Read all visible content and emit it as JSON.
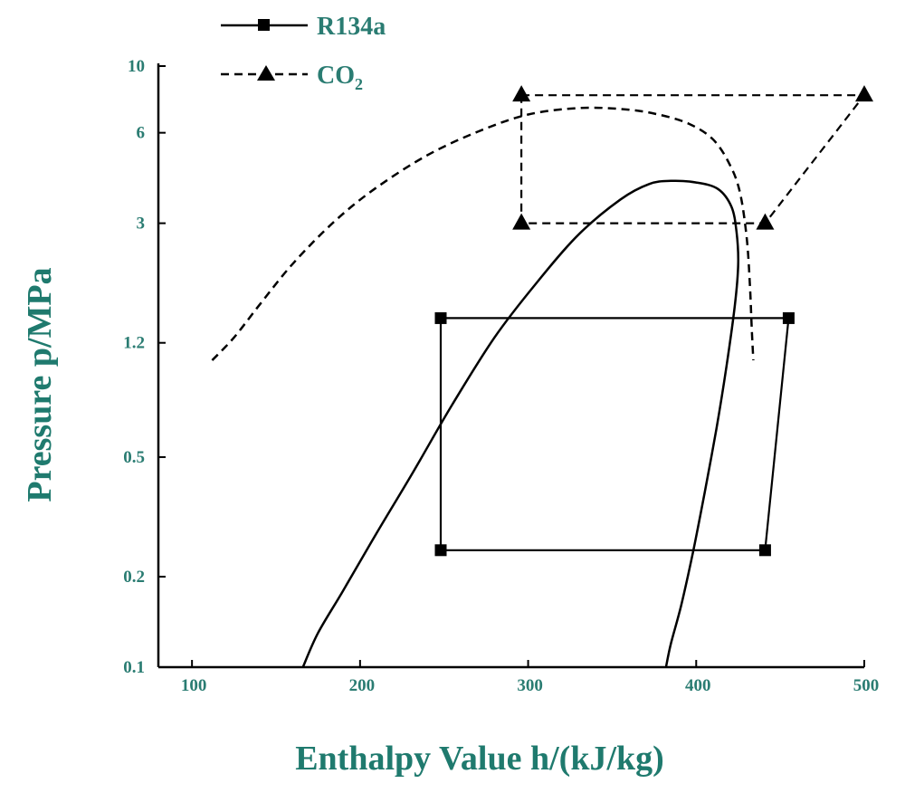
{
  "chart_data": {
    "type": "line",
    "xlabel": "Enthalpy Value h/(kJ/kg)",
    "ylabel": "Pressure p/MPa",
    "xlim": [
      80,
      500
    ],
    "ylim": [
      0.1,
      10
    ],
    "yscale": "log",
    "x_ticks": [
      100,
      200,
      300,
      400,
      500
    ],
    "x_tick_labels": [
      "100",
      "200",
      "300",
      "400",
      "500"
    ],
    "y_ticks": [
      0.1,
      0.2,
      0.5,
      1.2,
      3,
      6,
      10
    ],
    "y_tick_labels": [
      "0.1",
      "0.2",
      "0.5",
      "1.2",
      "3",
      "6",
      "10"
    ],
    "grid": false,
    "legend": {
      "position": "top-left",
      "entries": [
        {
          "label": "R134a",
          "line": "solid",
          "marker": "square"
        },
        {
          "label": "CO",
          "subscript": "2",
          "line": "dashed",
          "marker": "triangle"
        }
      ]
    },
    "series": [
      {
        "name": "R134a",
        "style": "solid",
        "marker": "square",
        "x": [
          248,
          455,
          441,
          248,
          248
        ],
        "y": [
          1.45,
          1.45,
          0.245,
          0.245,
          1.45
        ]
      },
      {
        "name": "CO2",
        "style": "dashed",
        "marker": "triangle",
        "x": [
          296,
          500,
          441,
          296,
          296
        ],
        "y": [
          8.0,
          8.0,
          3.0,
          3.0,
          8.0
        ]
      }
    ],
    "saturation_domes": [
      {
        "fluid": "R134a",
        "style": "solid",
        "x": [
          166,
          175,
          190,
          210,
          232,
          255,
          280,
          305,
          330,
          355,
          372,
          385,
          400,
          413,
          421,
          424,
          425,
          423,
          418,
          412,
          405,
          398,
          391,
          385,
          382
        ],
        "y": [
          0.1,
          0.13,
          0.18,
          0.28,
          0.45,
          0.75,
          1.25,
          1.9,
          2.75,
          3.6,
          4.05,
          4.15,
          4.1,
          3.9,
          3.4,
          2.8,
          2.2,
          1.6,
          1.0,
          0.62,
          0.38,
          0.24,
          0.16,
          0.12,
          0.1
        ]
      },
      {
        "fluid": "CO2",
        "style": "dashed",
        "x": [
          112,
          125,
          140,
          160,
          185,
          210,
          240,
          270,
          300,
          330,
          355,
          375,
          395,
          410,
          420,
          426,
          430,
          432,
          433,
          434
        ],
        "y": [
          1.05,
          1.25,
          1.6,
          2.2,
          3.05,
          3.95,
          5.05,
          6.05,
          6.9,
          7.25,
          7.2,
          6.95,
          6.45,
          5.7,
          4.7,
          3.8,
          2.7,
          1.85,
          1.35,
          1.05
        ]
      }
    ]
  }
}
